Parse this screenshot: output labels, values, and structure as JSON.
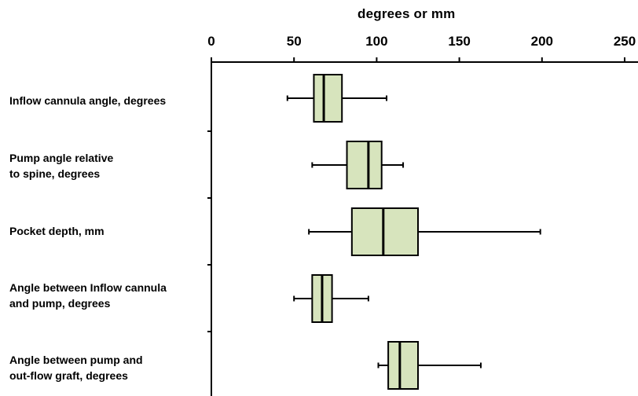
{
  "chart_data": {
    "type": "boxplot",
    "orientation": "horizontal",
    "xlabel": "degrees or mm",
    "xlim": [
      0,
      250
    ],
    "xticks": [
      0,
      50,
      100,
      150,
      200,
      250
    ],
    "xtick_labels": [
      "0",
      "50",
      "100",
      "150",
      "200",
      "250"
    ],
    "box_color": "#d7e4bd",
    "categories": [
      {
        "label": "Inflow cannula angle, degrees",
        "min": 46,
        "q1": 62,
        "median": 68,
        "q3": 79,
        "max": 106
      },
      {
        "label": "Pump angle relative\nto spine, degrees",
        "min": 61,
        "q1": 82,
        "median": 95,
        "q3": 103,
        "max": 116
      },
      {
        "label": "Pocket depth, mm",
        "min": 59,
        "q1": 85,
        "median": 104,
        "q3": 125,
        "max": 199
      },
      {
        "label": "Angle between Inflow cannula\nand pump, degrees",
        "min": 50,
        "q1": 61,
        "median": 67,
        "q3": 73,
        "max": 95
      },
      {
        "label": "Angle between pump and\nout-flow graft, degrees",
        "min": 101,
        "q1": 107,
        "median": 114,
        "q3": 125,
        "max": 163
      }
    ]
  }
}
